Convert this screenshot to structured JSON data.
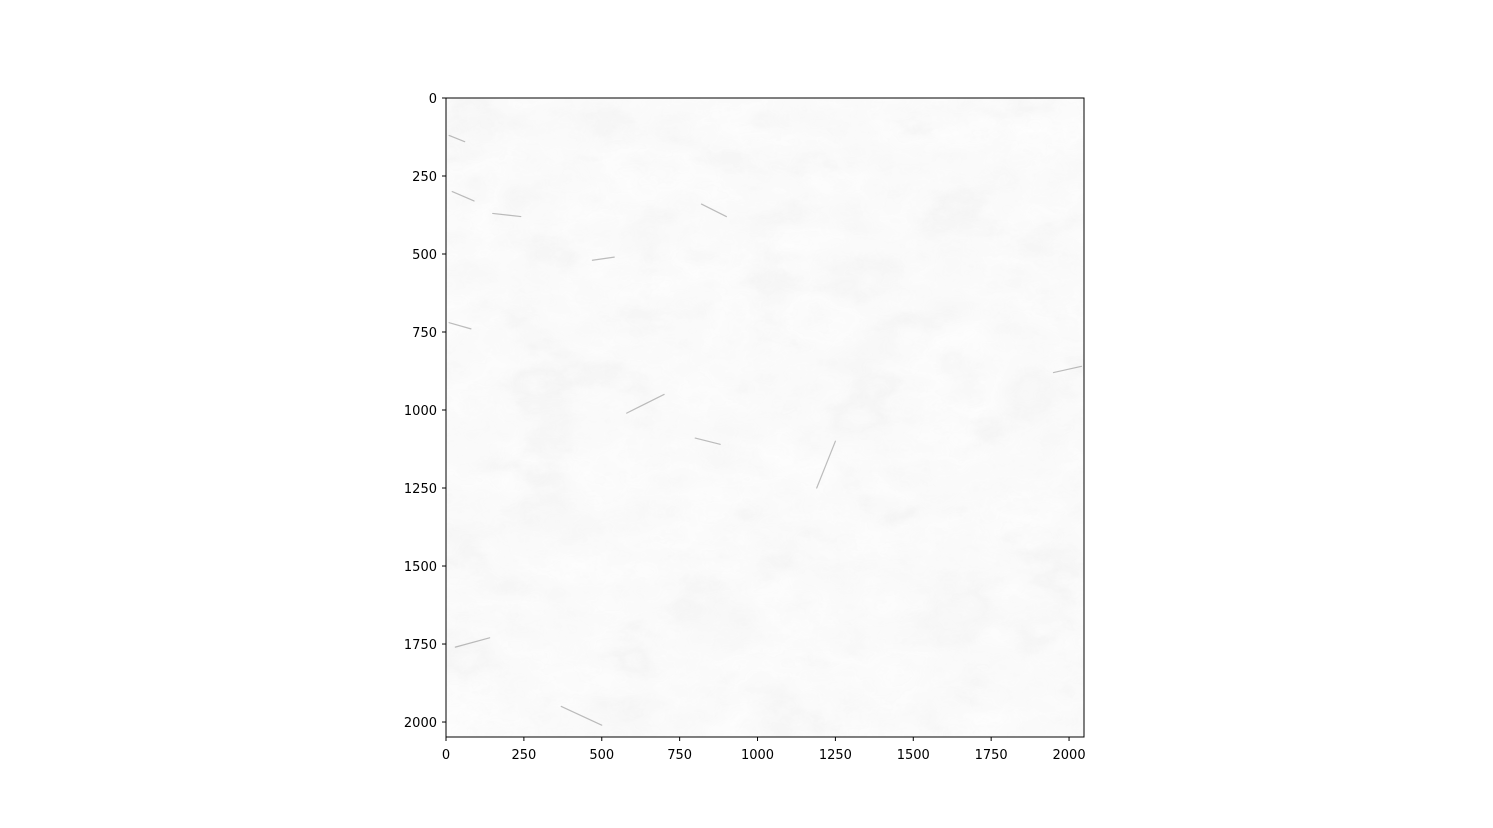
{
  "chart_data": {
    "type": "heatmap",
    "title": "",
    "xlabel": "",
    "ylabel": "",
    "colormap": "grayscale (white = low, dark gray = high), mostly near-white",
    "xlim": [
      0,
      2048
    ],
    "ylim": [
      2048,
      0
    ],
    "xticks": [
      0,
      250,
      500,
      750,
      1000,
      1250,
      1500,
      1750,
      2000
    ],
    "yticks": [
      0,
      250,
      500,
      750,
      1000,
      1250,
      1500,
      1750,
      2000
    ],
    "xtick_labels": [
      "0",
      "250",
      "500",
      "750",
      "1000",
      "1250",
      "1500",
      "1750",
      "2000"
    ],
    "ytick_labels": [
      "0",
      "250",
      "500",
      "750",
      "1000",
      "1250",
      "1500",
      "1750",
      "2000"
    ],
    "grid": false,
    "legend": "none",
    "colors": {
      "background": "#ffffff",
      "axes": "#000000",
      "image_base": "#f8f8f8",
      "texture": "#444444"
    }
  }
}
